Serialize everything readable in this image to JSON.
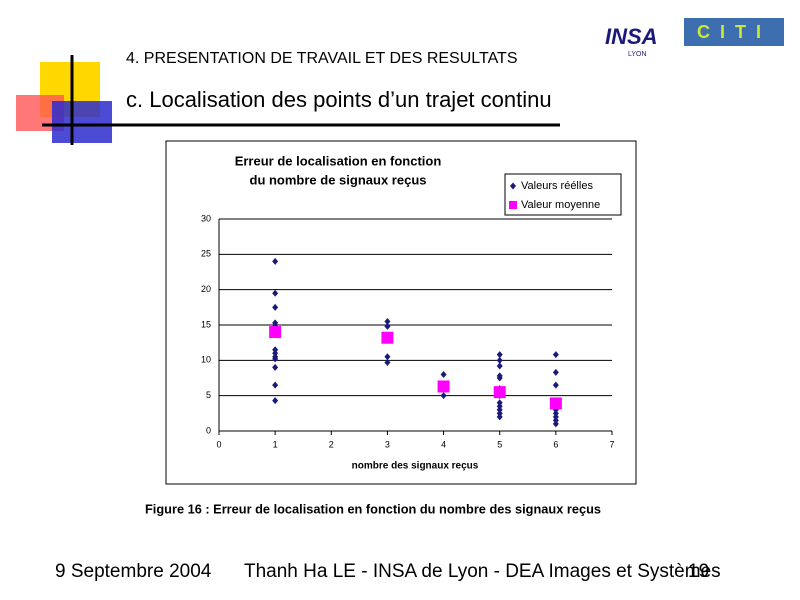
{
  "header": {
    "section": "4. PRESENTATION DE TRAVAIL ET DES RESULTATS",
    "subtitle": "c. Localisation des points d’un trajet continu",
    "logos": [
      "INSA",
      "LYON",
      "CITI"
    ]
  },
  "chart_data": {
    "type": "scatter",
    "title": [
      "Erreur de localisation en fonction",
      "du nombre de signaux reçus"
    ],
    "x_label": "nombre des signaux reçus",
    "xlim": [
      0,
      7
    ],
    "xticks": [
      0,
      1,
      2,
      3,
      4,
      5,
      6,
      7
    ],
    "ylim": [
      0,
      30
    ],
    "yticks": [
      0,
      5,
      10,
      15,
      20,
      25,
      30
    ],
    "grid": true,
    "legend": "upper right",
    "series": [
      {
        "name": "Valeurs réélles",
        "color": "#1a1a7a",
        "marker": "diamond",
        "x": [
          1,
          1,
          1,
          1,
          1,
          1,
          1,
          1,
          1,
          1,
          1,
          1,
          3,
          3,
          3,
          3,
          4,
          4,
          4,
          5,
          5,
          5,
          5,
          5,
          5,
          5,
          5,
          5,
          5,
          5,
          5,
          6,
          6,
          6,
          6,
          6,
          6,
          6,
          6,
          6
        ],
        "values": [
          24,
          19.5,
          17.5,
          15.3,
          15,
          11.5,
          11,
          10.5,
          10.2,
          9,
          6.5,
          4.3,
          15.5,
          14.8,
          10.5,
          9.7,
          8,
          6.5,
          5,
          10.8,
          10,
          9.2,
          7.8,
          7.5,
          6,
          5,
          4,
          3.5,
          3,
          2.5,
          2,
          10.8,
          8.3,
          6.5,
          4,
          3,
          2.5,
          2,
          1.5,
          1
        ]
      },
      {
        "name": "Valeur moyenne",
        "color": "#ff00ff",
        "marker": "square",
        "x": [
          1,
          3,
          4,
          5,
          6
        ],
        "values": [
          14,
          13.2,
          6.3,
          5.5,
          3.9
        ]
      }
    ]
  },
  "caption": "Figure 16 : Erreur de localisation en fonction du nombre des signaux reçus",
  "footer": {
    "date": "9 Septembre 2004",
    "author": "Thanh Ha LE - INSA de Lyon -  DEA Images et Systèmes",
    "page": "19"
  }
}
